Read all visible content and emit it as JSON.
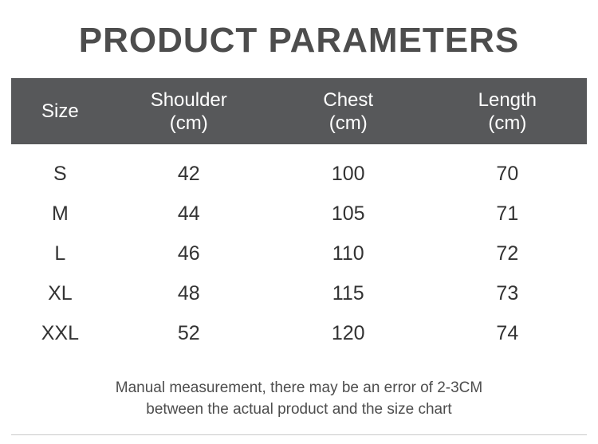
{
  "title": "PRODUCT PARAMETERS",
  "chart_data": {
    "type": "table",
    "title": "PRODUCT PARAMETERS",
    "columns": [
      {
        "label": "Size",
        "unit": ""
      },
      {
        "label": "Shoulder",
        "unit": "(cm)"
      },
      {
        "label": "Chest",
        "unit": "(cm)"
      },
      {
        "label": "Length",
        "unit": "(cm)"
      }
    ],
    "rows": [
      [
        "S",
        "42",
        "100",
        "70"
      ],
      [
        "M",
        "44",
        "105",
        "71"
      ],
      [
        "L",
        "46",
        "110",
        "72"
      ],
      [
        "XL",
        "48",
        "115",
        "73"
      ],
      [
        "XXL",
        "52",
        "120",
        "74"
      ]
    ]
  },
  "note": {
    "line1": "Manual measurement, there may be an error of 2-3CM",
    "line2": "between the actual product and the size chart"
  },
  "colors": {
    "header_bg": "#57585a",
    "header_text": "#ffffff",
    "title_text": "#4d4d4d",
    "cell_text": "#333333",
    "note_text": "#4d4d4d",
    "divider": "#c9c9c9"
  }
}
